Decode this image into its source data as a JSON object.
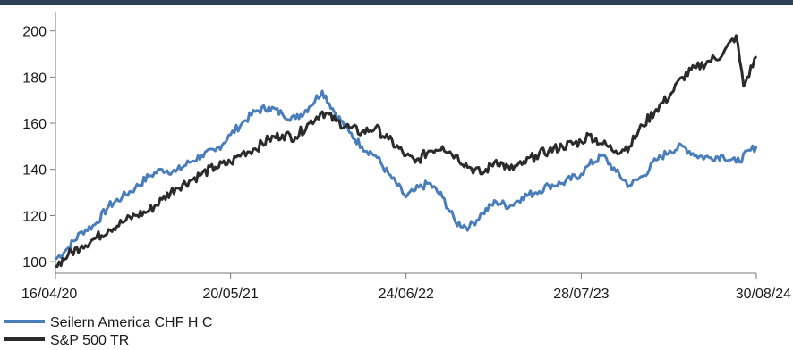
{
  "chart_data": {
    "type": "line",
    "title": "",
    "xlabel": "",
    "ylabel": "",
    "x_ticks": [
      "16/04/20",
      "20/05/21",
      "24/06/22",
      "28/07/23",
      "30/08/24"
    ],
    "y_ticks": [
      100,
      120,
      140,
      160,
      180,
      200
    ],
    "ylim": [
      95,
      208
    ],
    "xlim": [
      "16/04/20",
      "30/08/24"
    ],
    "grid": false,
    "legend_position": "bottom-left",
    "series": [
      {
        "name": "Seilern America CHF H C",
        "color": "#4a7ebb",
        "points": [
          [
            "16/04/20",
            101
          ],
          [
            "15/05/20",
            106
          ],
          [
            "15/06/20",
            113
          ],
          [
            "15/07/20",
            116
          ],
          [
            "15/08/20",
            124
          ],
          [
            "15/09/20",
            128
          ],
          [
            "15/10/20",
            132
          ],
          [
            "15/11/20",
            137
          ],
          [
            "15/12/20",
            140
          ],
          [
            "15/01/21",
            139
          ],
          [
            "15/02/21",
            143
          ],
          [
            "15/03/21",
            146
          ],
          [
            "15/04/21",
            148
          ],
          [
            "20/05/21",
            155
          ],
          [
            "15/06/21",
            160
          ],
          [
            "15/07/21",
            165
          ],
          [
            "15/08/21",
            167
          ],
          [
            "15/09/21",
            164
          ],
          [
            "15/10/21",
            162
          ],
          [
            "15/11/21",
            167
          ],
          [
            "15/12/21",
            174
          ],
          [
            "15/01/22",
            164
          ],
          [
            "15/02/22",
            156
          ],
          [
            "15/03/22",
            150
          ],
          [
            "15/04/22",
            146
          ],
          [
            "15/05/22",
            138
          ],
          [
            "24/06/22",
            128
          ],
          [
            "15/07/22",
            131
          ],
          [
            "15/08/22",
            134
          ],
          [
            "15/09/22",
            128
          ],
          [
            "15/10/22",
            117
          ],
          [
            "15/11/22",
            115
          ],
          [
            "15/12/22",
            121
          ],
          [
            "15/01/23",
            126
          ],
          [
            "15/02/23",
            124
          ],
          [
            "15/03/23",
            128
          ],
          [
            "15/04/23",
            130
          ],
          [
            "15/05/23",
            133
          ],
          [
            "15/06/23",
            134
          ],
          [
            "28/07/23",
            138
          ],
          [
            "15/08/23",
            142
          ],
          [
            "15/09/23",
            146
          ],
          [
            "15/10/23",
            139
          ],
          [
            "15/11/23",
            133
          ],
          [
            "15/12/23",
            137
          ],
          [
            "15/01/24",
            144
          ],
          [
            "15/02/24",
            148
          ],
          [
            "15/03/24",
            150
          ],
          [
            "15/04/24",
            146
          ],
          [
            "15/05/24",
            145
          ],
          [
            "15/06/24",
            146
          ],
          [
            "15/07/24",
            143
          ],
          [
            "30/08/24",
            150
          ]
        ]
      },
      {
        "name": "S&P 500 TR",
        "color": "#2b2b2b",
        "points": [
          [
            "16/04/20",
            98
          ],
          [
            "15/05/20",
            103
          ],
          [
            "15/06/20",
            107
          ],
          [
            "15/07/20",
            110
          ],
          [
            "15/08/20",
            114
          ],
          [
            "15/09/20",
            117
          ],
          [
            "15/10/20",
            120
          ],
          [
            "15/11/20",
            122
          ],
          [
            "15/12/20",
            127
          ],
          [
            "15/01/21",
            132
          ],
          [
            "15/02/21",
            135
          ],
          [
            "15/03/21",
            138
          ],
          [
            "15/04/21",
            141
          ],
          [
            "20/05/21",
            143
          ],
          [
            "15/06/21",
            147
          ],
          [
            "15/07/21",
            149
          ],
          [
            "15/08/21",
            153
          ],
          [
            "15/09/21",
            155
          ],
          [
            "15/10/21",
            154
          ],
          [
            "15/11/21",
            160
          ],
          [
            "15/12/21",
            165
          ],
          [
            "15/01/22",
            161
          ],
          [
            "15/02/22",
            158
          ],
          [
            "15/03/22",
            156
          ],
          [
            "15/04/22",
            158
          ],
          [
            "15/05/22",
            153
          ],
          [
            "24/06/22",
            146
          ],
          [
            "15/07/22",
            143
          ],
          [
            "15/08/22",
            148
          ],
          [
            "15/09/22",
            150
          ],
          [
            "15/10/22",
            146
          ],
          [
            "15/11/22",
            141
          ],
          [
            "15/12/22",
            138
          ],
          [
            "15/01/23",
            144
          ],
          [
            "15/02/23",
            140
          ],
          [
            "15/03/23",
            142
          ],
          [
            "15/04/23",
            146
          ],
          [
            "15/05/23",
            148
          ],
          [
            "15/06/23",
            150
          ],
          [
            "28/07/23",
            152
          ],
          [
            "15/08/23",
            155
          ],
          [
            "15/09/23",
            151
          ],
          [
            "15/10/23",
            148
          ],
          [
            "15/11/23",
            150
          ],
          [
            "15/12/23",
            159
          ],
          [
            "15/01/24",
            166
          ],
          [
            "15/02/24",
            172
          ],
          [
            "15/03/24",
            180
          ],
          [
            "15/04/24",
            184
          ],
          [
            "15/05/24",
            187
          ],
          [
            "15/06/24",
            190
          ],
          [
            "15/07/24",
            198
          ],
          [
            "01/08/24",
            176
          ],
          [
            "30/08/24",
            189
          ]
        ]
      }
    ]
  }
}
